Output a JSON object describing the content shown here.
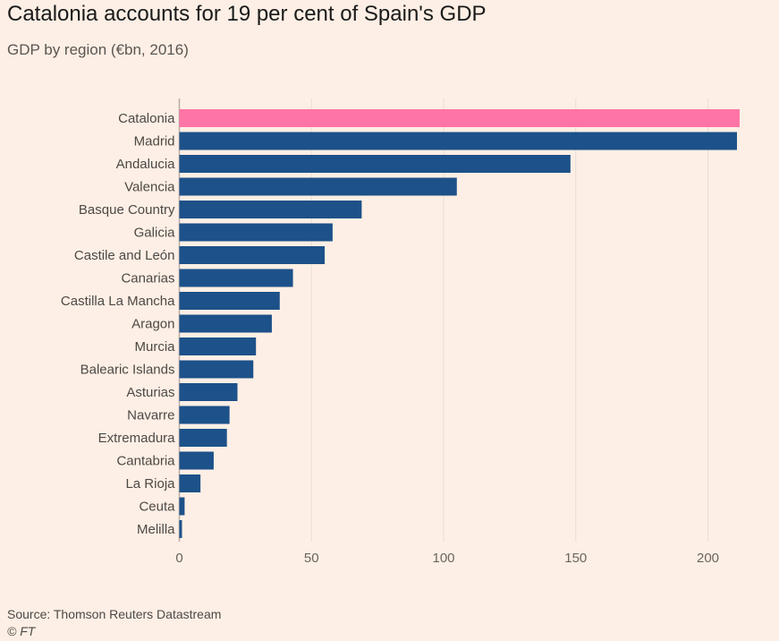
{
  "title": "Catalonia accounts for 19 per cent of Spain's GDP",
  "subtitle": "GDP by region (€bn, 2016)",
  "source": "Source: Thomson Reuters Datastream",
  "credit": "© FT",
  "colors": {
    "background": "#fdefe5",
    "highlight": "#ff74a6",
    "bar": "#1d5189",
    "grid": "#e8ddd4",
    "axis_text": "#6b6460",
    "label_text": "#4d4845"
  },
  "chart_data": {
    "type": "bar",
    "orientation": "horizontal",
    "categories": [
      "Catalonia",
      "Madrid",
      "Andalucia",
      "Valencia",
      "Basque Country",
      "Galicia",
      "Castile and León",
      "Canarias",
      "Castilla La Mancha",
      "Aragon",
      "Murcia",
      "Balearic Islands",
      "Asturias",
      "Navarre",
      "Extremadura",
      "Cantabria",
      "La Rioja",
      "Ceuta",
      "Melilla"
    ],
    "values": [
      212,
      211,
      148,
      105,
      69,
      58,
      55,
      43,
      38,
      35,
      29,
      28,
      22,
      19,
      18,
      13,
      8,
      2,
      1
    ],
    "highlight_index": 0,
    "xticks": [
      0,
      50,
      100,
      150,
      200
    ],
    "xlim": [
      0,
      212
    ],
    "grid": true,
    "legend": "none"
  }
}
